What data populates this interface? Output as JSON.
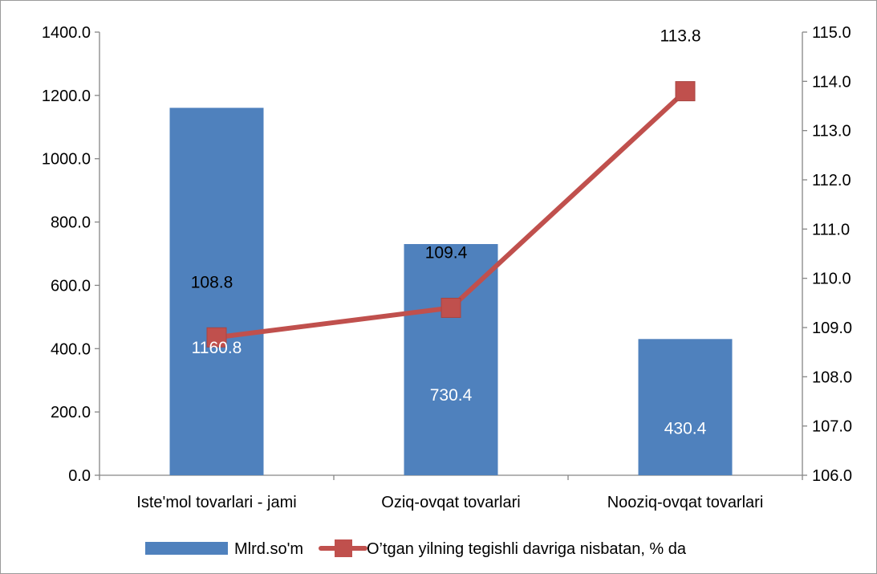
{
  "chart_data": {
    "type": "bar",
    "categories": [
      "Iste'mol tovarlari - jami",
      "Oziq-ovqat tovarlari",
      "Nooziq-ovqat tovarlari"
    ],
    "series": [
      {
        "name": "Mlrd.so'm",
        "type": "bar",
        "axis": "left",
        "color": "#4f81bd",
        "values": [
          1160.8,
          730.4,
          430.4
        ],
        "labels": [
          "1160.8",
          "730.4",
          "430.4"
        ]
      },
      {
        "name": "O’tgan yilning tegishli davriga nisbatan, % da",
        "type": "line",
        "axis": "right",
        "color": "#c0504d",
        "marker": "square",
        "values": [
          108.8,
          109.4,
          113.8
        ],
        "labels": [
          "108.8",
          "109.4",
          "113.8"
        ]
      }
    ],
    "y_left": {
      "min": 0,
      "max": 1400,
      "step": 200,
      "tick_labels": [
        "0.0",
        "200.0",
        "400.0",
        "600.0",
        "800.0",
        "1000.0",
        "1200.0",
        "1400.0"
      ]
    },
    "y_right": {
      "min": 106,
      "max": 115,
      "step": 1,
      "tick_labels": [
        "106.0",
        "107.0",
        "108.0",
        "109.0",
        "110.0",
        "111.0",
        "112.0",
        "113.0",
        "114.0",
        "115.0"
      ]
    },
    "title": "",
    "xlabel": "",
    "grid": false,
    "legend_position": "bottom"
  }
}
